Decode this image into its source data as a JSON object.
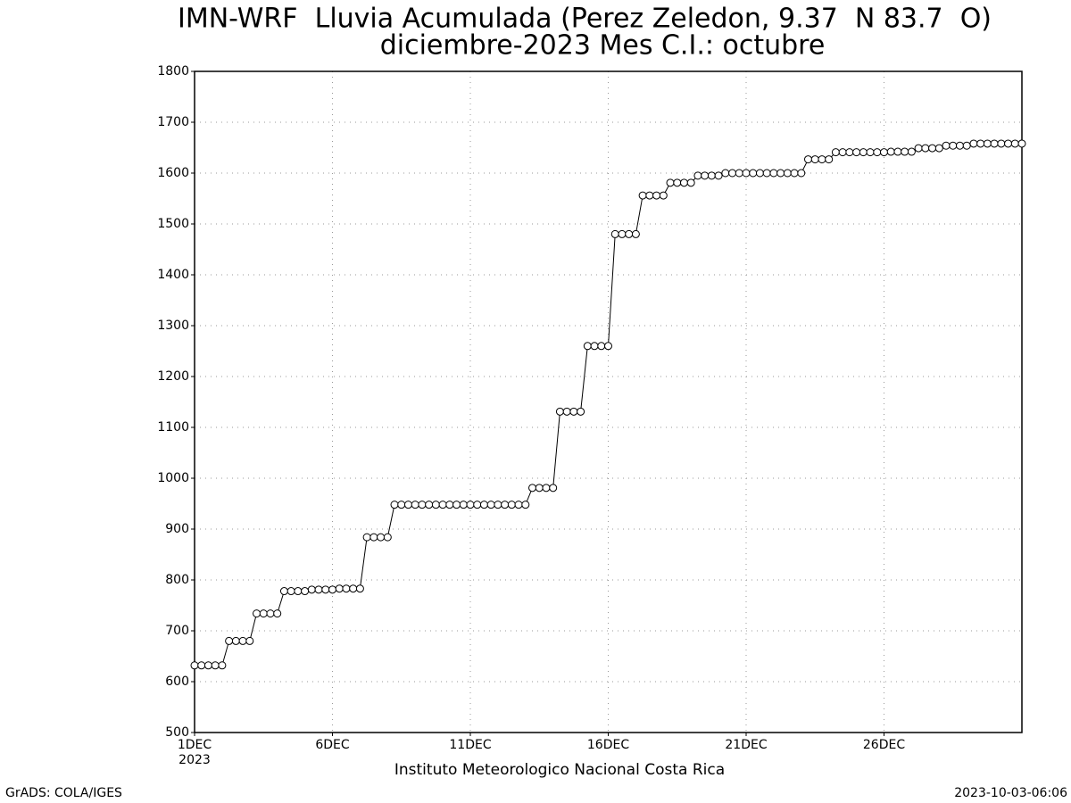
{
  "chart_data": {
    "type": "line",
    "title": "IMN-WRF  Lluvia Acumulada (Perez Zeledon, 9.37  N 83.7  O)",
    "subtitle": "diciembre-2023 Mes C.I.: octubre",
    "x_year_label": "2023",
    "footer": "Instituto Meteorologico Nacional Costa Rica",
    "credit": "GrADS: COLA/IGES",
    "timestamp": "2023-10-03-06:06",
    "color": "#000000",
    "marker_fill": "#ffffff",
    "grid": true,
    "x": [
      1,
      1.25,
      1.5,
      1.75,
      2,
      2.25,
      2.5,
      2.75,
      3,
      3.25,
      3.5,
      3.75,
      4,
      4.25,
      4.5,
      4.75,
      5,
      5.25,
      5.5,
      5.75,
      6,
      6.25,
      6.5,
      6.75,
      7,
      7.25,
      7.5,
      7.75,
      8,
      8.25,
      8.5,
      8.75,
      9,
      9.25,
      9.5,
      9.75,
      10,
      10.25,
      10.5,
      10.75,
      11,
      11.25,
      11.5,
      11.75,
      12,
      12.25,
      12.5,
      12.75,
      13,
      13.25,
      13.5,
      13.75,
      14,
      14.25,
      14.5,
      14.75,
      15,
      15.25,
      15.5,
      15.75,
      16,
      16.25,
      16.5,
      16.75,
      17,
      17.25,
      17.5,
      17.75,
      18,
      18.25,
      18.5,
      18.75,
      19,
      19.25,
      19.5,
      19.75,
      20,
      20.25,
      20.5,
      20.75,
      21,
      21.25,
      21.5,
      21.75,
      22,
      22.25,
      22.5,
      22.75,
      23,
      23.25,
      23.5,
      23.75,
      24,
      24.25,
      24.5,
      24.75,
      25,
      25.25,
      25.5,
      25.75,
      26,
      26.25,
      26.5,
      26.75,
      27,
      27.25,
      27.5,
      27.75,
      28,
      28.25,
      28.5,
      28.75,
      29,
      29.25,
      29.5,
      29.75,
      30,
      30.25,
      30.5,
      30.75,
      31
    ],
    "values": [
      632,
      632,
      632,
      632,
      632,
      680,
      680,
      680,
      680,
      734,
      734,
      734,
      734,
      778,
      778,
      778,
      778,
      781,
      781,
      781,
      781,
      783,
      783,
      783,
      783,
      884,
      884,
      884,
      884,
      948,
      948,
      948,
      948,
      948,
      948,
      948,
      948,
      948,
      948,
      948,
      948,
      948,
      948,
      948,
      948,
      948,
      948,
      948,
      948,
      981,
      981,
      981,
      981,
      1131,
      1131,
      1131,
      1131,
      1260,
      1260,
      1260,
      1260,
      1480,
      1480,
      1480,
      1480,
      1556,
      1556,
      1556,
      1556,
      1581,
      1581,
      1581,
      1581,
      1595,
      1595,
      1595,
      1595,
      1600,
      1600,
      1600,
      1600,
      1600,
      1600,
      1600,
      1600,
      1600,
      1600,
      1600,
      1600,
      1627,
      1627,
      1627,
      1627,
      1641,
      1641,
      1641,
      1641,
      1641,
      1641,
      1641,
      1641,
      1642,
      1642,
      1642,
      1642,
      1649,
      1649,
      1649,
      1649,
      1654,
      1654,
      1654,
      1654,
      1658,
      1658,
      1658,
      1658,
      1658,
      1658,
      1658,
      1658
    ],
    "xlim": [
      1,
      31
    ],
    "xticks": [
      {
        "value": 1,
        "label": "1DEC"
      },
      {
        "value": 6,
        "label": "6DEC"
      },
      {
        "value": 11,
        "label": "11DEC"
      },
      {
        "value": 16,
        "label": "16DEC"
      },
      {
        "value": 21,
        "label": "21DEC"
      },
      {
        "value": 26,
        "label": "26DEC"
      }
    ],
    "ylim": [
      500,
      1800
    ],
    "yticks": [
      500,
      600,
      700,
      800,
      900,
      1000,
      1100,
      1200,
      1300,
      1400,
      1500,
      1600,
      1700,
      1800
    ]
  }
}
